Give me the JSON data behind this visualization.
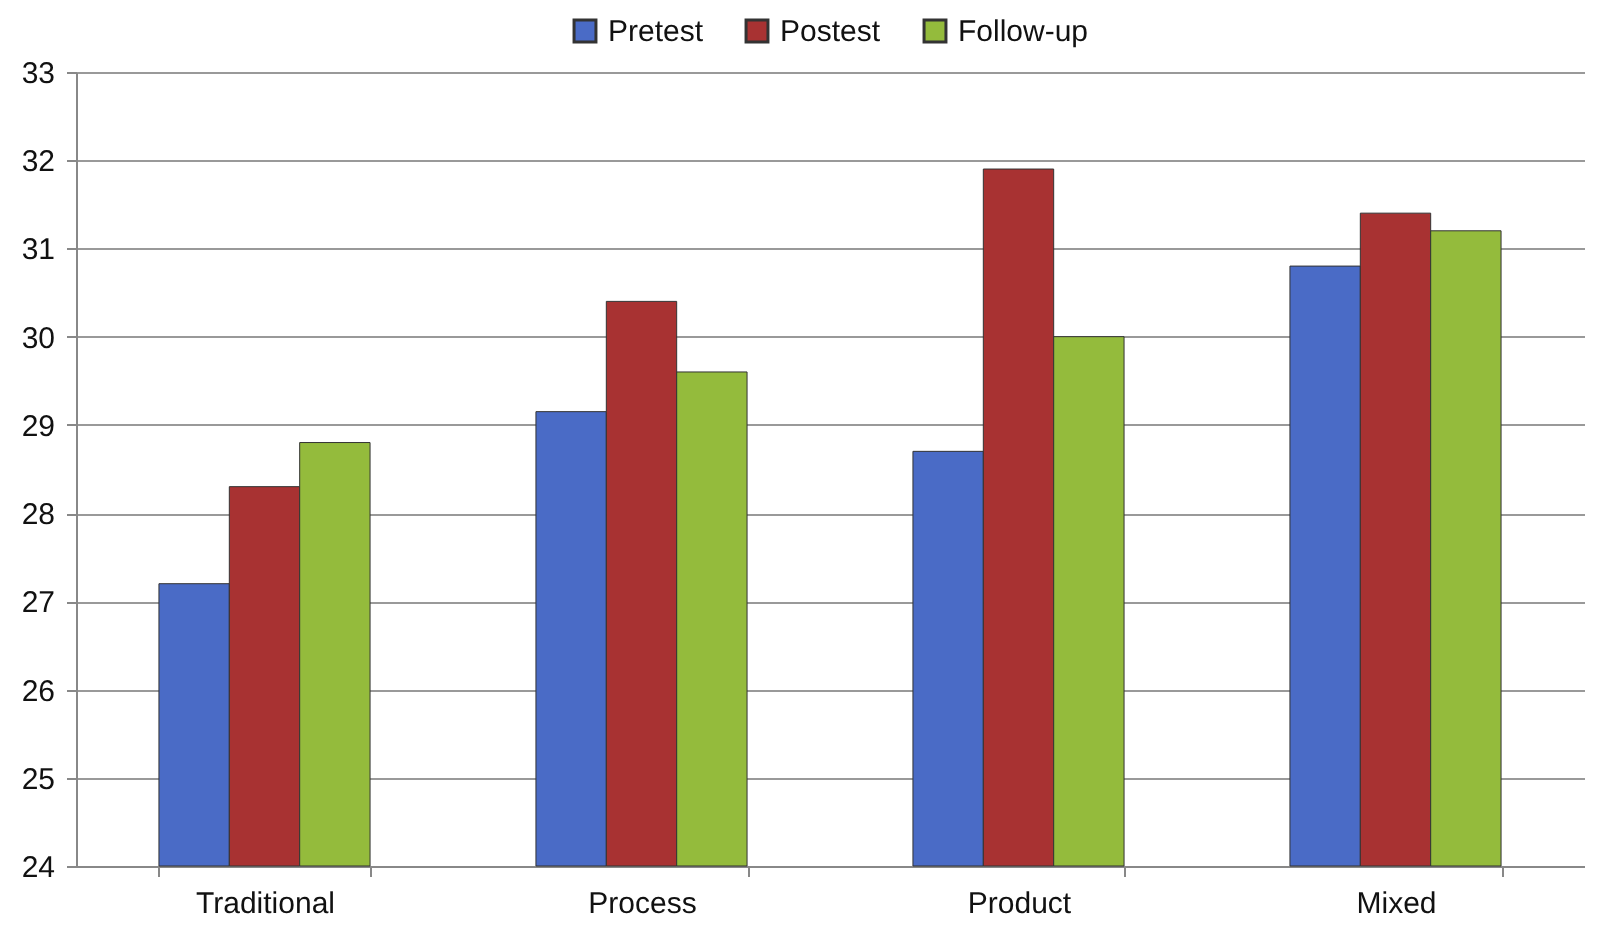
{
  "chart_data": {
    "type": "bar",
    "categories": [
      "Traditional",
      "Process",
      "Product",
      "Mixed"
    ],
    "series": [
      {
        "name": "Pretest",
        "color": "#4a6bc6",
        "values": [
          27.2,
          29.15,
          28.7,
          30.8
        ]
      },
      {
        "name": "Postest",
        "color": "#a83232",
        "values": [
          28.3,
          30.4,
          31.9,
          31.4
        ]
      },
      {
        "name": "Follow-up",
        "color": "#94bb3c",
        "values": [
          28.8,
          29.6,
          30.0,
          31.2
        ]
      }
    ],
    "ylim": [
      24,
      33
    ],
    "yticks": [
      24,
      25,
      26,
      27,
      28,
      29,
      30,
      31,
      32,
      33
    ],
    "grid": "y",
    "legend": "top"
  }
}
